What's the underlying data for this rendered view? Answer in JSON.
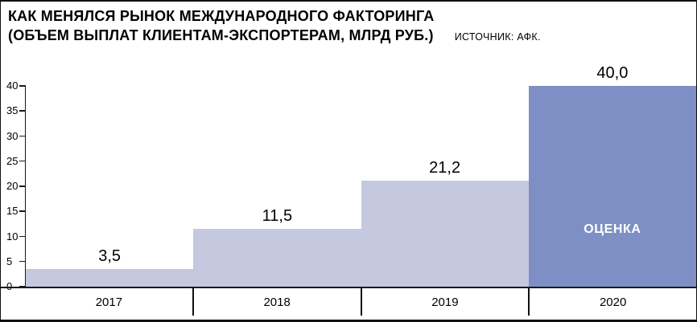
{
  "header": {
    "title_line1": "КАК МЕНЯЛСЯ РЫНОК МЕЖДУНАРОДНОГО ФАКТОРИНГА",
    "title_line2": "(ОБЪЕМ ВЫПЛАТ КЛИЕНТАМ-ЭКСПОРТЕРАМ, МЛРД РУБ.)",
    "source": "ИСТОЧНИК: АФК."
  },
  "chart_data": {
    "type": "bar",
    "title": "КАК МЕНЯЛСЯ РЫНОК МЕЖДУНАРОДНОГО ФАКТОРИНГА (ОБЪЕМ ВЫПЛАТ КЛИЕНТАМ-ЭКСПОРТЕРАМ, МЛРД РУБ.)",
    "source": "ИСТОЧНИК: АФК.",
    "categories": [
      "2017",
      "2018",
      "2019",
      "2020"
    ],
    "values": [
      3.5,
      11.5,
      21.2,
      40.0
    ],
    "value_labels": [
      "3,5",
      "11,5",
      "21,2",
      "40,0"
    ],
    "bar_annotations": [
      "",
      "",
      "",
      "ОЦЕНКА"
    ],
    "xlabel": "",
    "ylabel": "",
    "ylim": [
      0,
      40
    ],
    "yticks": [
      0,
      5,
      10,
      15,
      20,
      25,
      30,
      35,
      40
    ],
    "grid": false,
    "legend": "none",
    "bar_colors": [
      "#c5c9e0",
      "#c5c9e0",
      "#c5c9e0",
      "#7d8fc4"
    ],
    "base_color": "#c5c9e0",
    "highlight_color": "#7d8fc4",
    "text_color": "#000000",
    "annotation_text_color": "#ffffff"
  }
}
